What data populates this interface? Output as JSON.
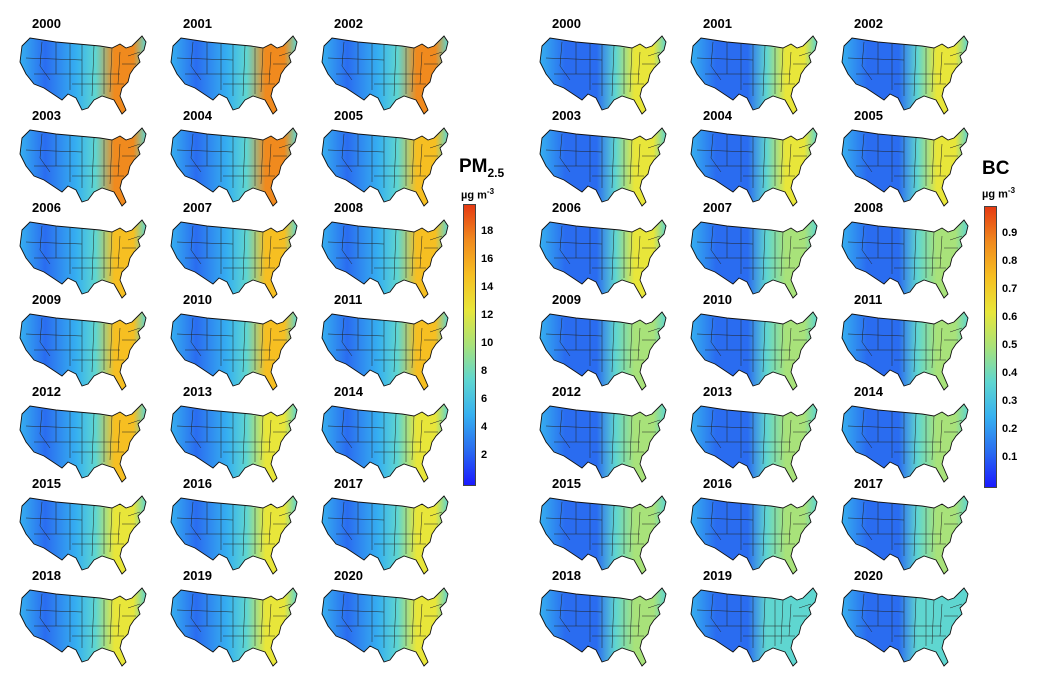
{
  "panels": [
    {
      "id": "pm25",
      "title_main": "PM",
      "title_sub": "2.5",
      "unit_base": "µg m",
      "unit_exp": "-3",
      "scale_max": 20,
      "ticks": [
        "18",
        "16",
        "14",
        "12",
        "10",
        "8",
        "6",
        "4",
        "2"
      ],
      "years": [
        "2000",
        "2001",
        "2002",
        "2003",
        "2004",
        "2005",
        "2006",
        "2007",
        "2008",
        "2009",
        "2010",
        "2011",
        "2012",
        "2013",
        "2014",
        "2015",
        "2016",
        "2017",
        "2018",
        "2019",
        "2020"
      ]
    },
    {
      "id": "bc",
      "title_main": "BC",
      "title_sub": "",
      "unit_base": "µg m",
      "unit_exp": "-3",
      "scale_max": 1.0,
      "ticks": [
        "0.9",
        "0.8",
        "0.7",
        "0.6",
        "0.5",
        "0.4",
        "0.3",
        "0.2",
        "0.1"
      ],
      "years": [
        "2000",
        "2001",
        "2002",
        "2003",
        "2004",
        "2005",
        "2006",
        "2007",
        "2008",
        "2009",
        "2010",
        "2011",
        "2012",
        "2013",
        "2014",
        "2015",
        "2016",
        "2017",
        "2018",
        "2019",
        "2020"
      ]
    }
  ],
  "colormap": [
    "#1a1aff",
    "#2a6cf0",
    "#36b0f0",
    "#5fd6d0",
    "#a8e27a",
    "#e8e63a",
    "#f6bf22",
    "#f08a1e",
    "#e53a12"
  ]
}
